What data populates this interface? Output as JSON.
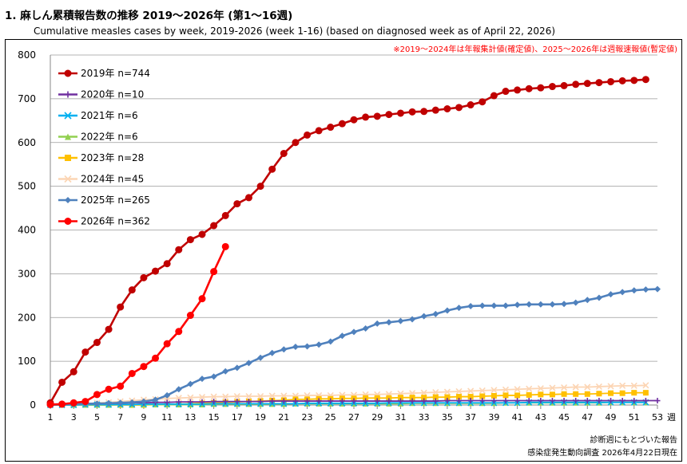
{
  "title": "1. 麻しん累積報告数の推移  2019～2026年 (第1～16週)",
  "subtitle": "Cumulative measles cases by week, 2019-2026 (week 1-16)  (based on diagnosed week as of April 22, 2026)",
  "note": "※2019～2024年は年報集計値(確定値)、2025～2026年は週報速報値(暫定値)",
  "source_line1": "診断週にもとづいた報告",
  "source_line2": "感染症発生動向調査 2026年4月22日現在",
  "chart_data": {
    "type": "line",
    "xlabel_unit": "週",
    "xticks": [
      1,
      3,
      5,
      7,
      9,
      11,
      13,
      15,
      17,
      19,
      21,
      23,
      25,
      27,
      29,
      31,
      33,
      35,
      37,
      39,
      41,
      43,
      45,
      47,
      49,
      51,
      53
    ],
    "ylim": [
      0,
      800
    ],
    "yticks": [
      0,
      100,
      200,
      300,
      400,
      500,
      600,
      700,
      800
    ],
    "grid": "horizontal",
    "legend_position": "top-left",
    "series": [
      {
        "name": "2019年 n=744",
        "color": "#c00000",
        "marker": "circle",
        "values": [
          5,
          52,
          76,
          121,
          143,
          173,
          224,
          263,
          291,
          306,
          323,
          355,
          378,
          390,
          410,
          433,
          460,
          474,
          500,
          539,
          575,
          600,
          617,
          627,
          635,
          643,
          652,
          658,
          660,
          664,
          667,
          670,
          671,
          674,
          677,
          680,
          686,
          693,
          707,
          717,
          720,
          723,
          725,
          728,
          730,
          733,
          735,
          737,
          739,
          741,
          742,
          744
        ]
      },
      {
        "name": "2020年 n=10",
        "color": "#7030a0",
        "marker": "plus",
        "values": [
          0,
          1,
          2,
          3,
          3,
          4,
          4,
          5,
          5,
          6,
          6,
          7,
          7,
          7,
          8,
          8,
          8,
          8,
          8,
          9,
          9,
          9,
          9,
          9,
          9,
          9,
          9,
          9,
          9,
          9,
          9,
          9,
          9,
          9,
          10,
          10,
          10,
          10,
          10,
          10,
          10,
          10,
          10,
          10,
          10,
          10,
          10,
          10,
          10,
          10,
          10,
          10,
          10
        ]
      },
      {
        "name": "2021年 n=6",
        "color": "#00b0f0",
        "marker": "x",
        "values": [
          0,
          0,
          0,
          1,
          1,
          1,
          1,
          1,
          2,
          2,
          2,
          2,
          2,
          2,
          3,
          3,
          3,
          3,
          3,
          3,
          3,
          3,
          4,
          4,
          4,
          4,
          4,
          4,
          4,
          5,
          5,
          5,
          5,
          5,
          5,
          5,
          5,
          5,
          5,
          5,
          5,
          6,
          6,
          6,
          6,
          6,
          6,
          6,
          6,
          6,
          6,
          6
        ]
      },
      {
        "name": "2022年 n=6",
        "color": "#92d050",
        "marker": "triangle",
        "values": [
          0,
          0,
          0,
          0,
          0,
          0,
          1,
          1,
          1,
          1,
          1,
          1,
          1,
          1,
          2,
          2,
          2,
          2,
          2,
          2,
          2,
          3,
          3,
          3,
          3,
          3,
          3,
          3,
          3,
          3,
          3,
          4,
          4,
          4,
          4,
          4,
          4,
          4,
          4,
          5,
          5,
          5,
          5,
          5,
          5,
          5,
          5,
          5,
          6,
          6,
          6,
          6
        ]
      },
      {
        "name": "2023年 n=28",
        "color": "#ffc000",
        "marker": "square",
        "values": [
          0,
          0,
          0,
          0,
          0,
          0,
          0,
          0,
          0,
          1,
          1,
          2,
          3,
          4,
          5,
          6,
          7,
          8,
          9,
          10,
          11,
          13,
          13,
          14,
          14,
          15,
          15,
          16,
          16,
          16,
          17,
          17,
          17,
          18,
          18,
          19,
          19,
          20,
          21,
          22,
          22,
          23,
          24,
          24,
          25,
          25,
          25,
          26,
          27,
          27,
          28,
          28
        ]
      },
      {
        "name": "2024年 n=45",
        "color": "#fcd5b4",
        "marker": "x",
        "values": [
          0,
          1,
          2,
          3,
          5,
          6,
          8,
          10,
          12,
          13,
          15,
          16,
          17,
          18,
          19,
          19,
          20,
          20,
          20,
          21,
          21,
          21,
          22,
          22,
          22,
          23,
          23,
          24,
          24,
          25,
          26,
          27,
          28,
          29,
          30,
          31,
          32,
          33,
          34,
          35,
          36,
          37,
          38,
          39,
          40,
          41,
          41,
          42,
          43,
          44,
          44,
          45
        ]
      },
      {
        "name": "2025年 n=265",
        "color": "#4f81bd",
        "marker": "diamond",
        "values": [
          1,
          2,
          2,
          3,
          3,
          4,
          5,
          6,
          8,
          12,
          22,
          36,
          48,
          60,
          65,
          77,
          85,
          96,
          108,
          119,
          127,
          133,
          134,
          138,
          145,
          158,
          167,
          175,
          186,
          189,
          192,
          196,
          203,
          208,
          216,
          222,
          226,
          227,
          227,
          227,
          229,
          230,
          230,
          230,
          231,
          234,
          240,
          245,
          253,
          258,
          262,
          264,
          265
        ]
      },
      {
        "name": "2026年 n=362",
        "color": "#ff0000",
        "marker": "circle",
        "values": [
          1,
          2,
          5,
          8,
          24,
          36,
          43,
          72,
          88,
          107,
          140,
          168,
          205,
          243,
          305,
          362
        ]
      }
    ]
  }
}
